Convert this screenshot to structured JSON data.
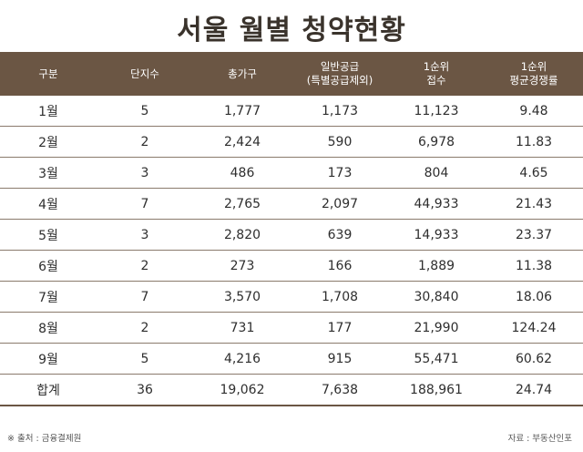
{
  "title": "서울 월별 청약현황",
  "columns": [
    {
      "line1": "구분",
      "line2": ""
    },
    {
      "line1": "단지수",
      "line2": ""
    },
    {
      "line1": "총가구",
      "line2": ""
    },
    {
      "line1": "일반공급",
      "line2": "(특별공급제외)"
    },
    {
      "line1": "1순위",
      "line2": "접수"
    },
    {
      "line1": "1순위",
      "line2": "평균경쟁률"
    }
  ],
  "rows": [
    [
      "1월",
      "5",
      "1,777",
      "1,173",
      "11,123",
      "9.48"
    ],
    [
      "2월",
      "2",
      "2,424",
      "590",
      "6,978",
      "11.83"
    ],
    [
      "3월",
      "3",
      "486",
      "173",
      "804",
      "4.65"
    ],
    [
      "4월",
      "7",
      "2,765",
      "2,097",
      "44,933",
      "21.43"
    ],
    [
      "5월",
      "3",
      "2,820",
      "639",
      "14,933",
      "23.37"
    ],
    [
      "6월",
      "2",
      "273",
      "166",
      "1,889",
      "11.38"
    ],
    [
      "7월",
      "7",
      "3,570",
      "1,708",
      "30,840",
      "18.06"
    ],
    [
      "8월",
      "2",
      "731",
      "177",
      "21,990",
      "124.24"
    ],
    [
      "9월",
      "5",
      "4,216",
      "915",
      "55,471",
      "60.62"
    ],
    [
      "합계",
      "36",
      "19,062",
      "7,638",
      "188,961",
      "24.74"
    ]
  ],
  "footer": {
    "source": "※ 출처 : 금융결제원",
    "credit": "자료 : 부동산인포"
  }
}
